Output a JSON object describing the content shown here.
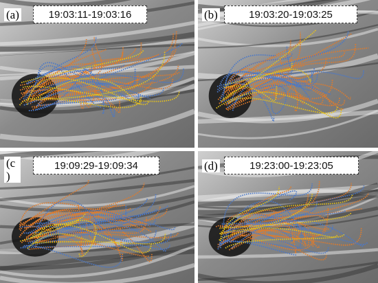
{
  "panels": [
    {
      "label": "(a)",
      "time": "19:03:11-19:03:16"
    },
    {
      "label": "(b)",
      "time": "19:03:20-19:03:25"
    },
    {
      "label": "(c )",
      "time": "19:09:29-19:09:34"
    },
    {
      "label": "(d)",
      "time": "19:23:00-19:23:05"
    }
  ]
}
